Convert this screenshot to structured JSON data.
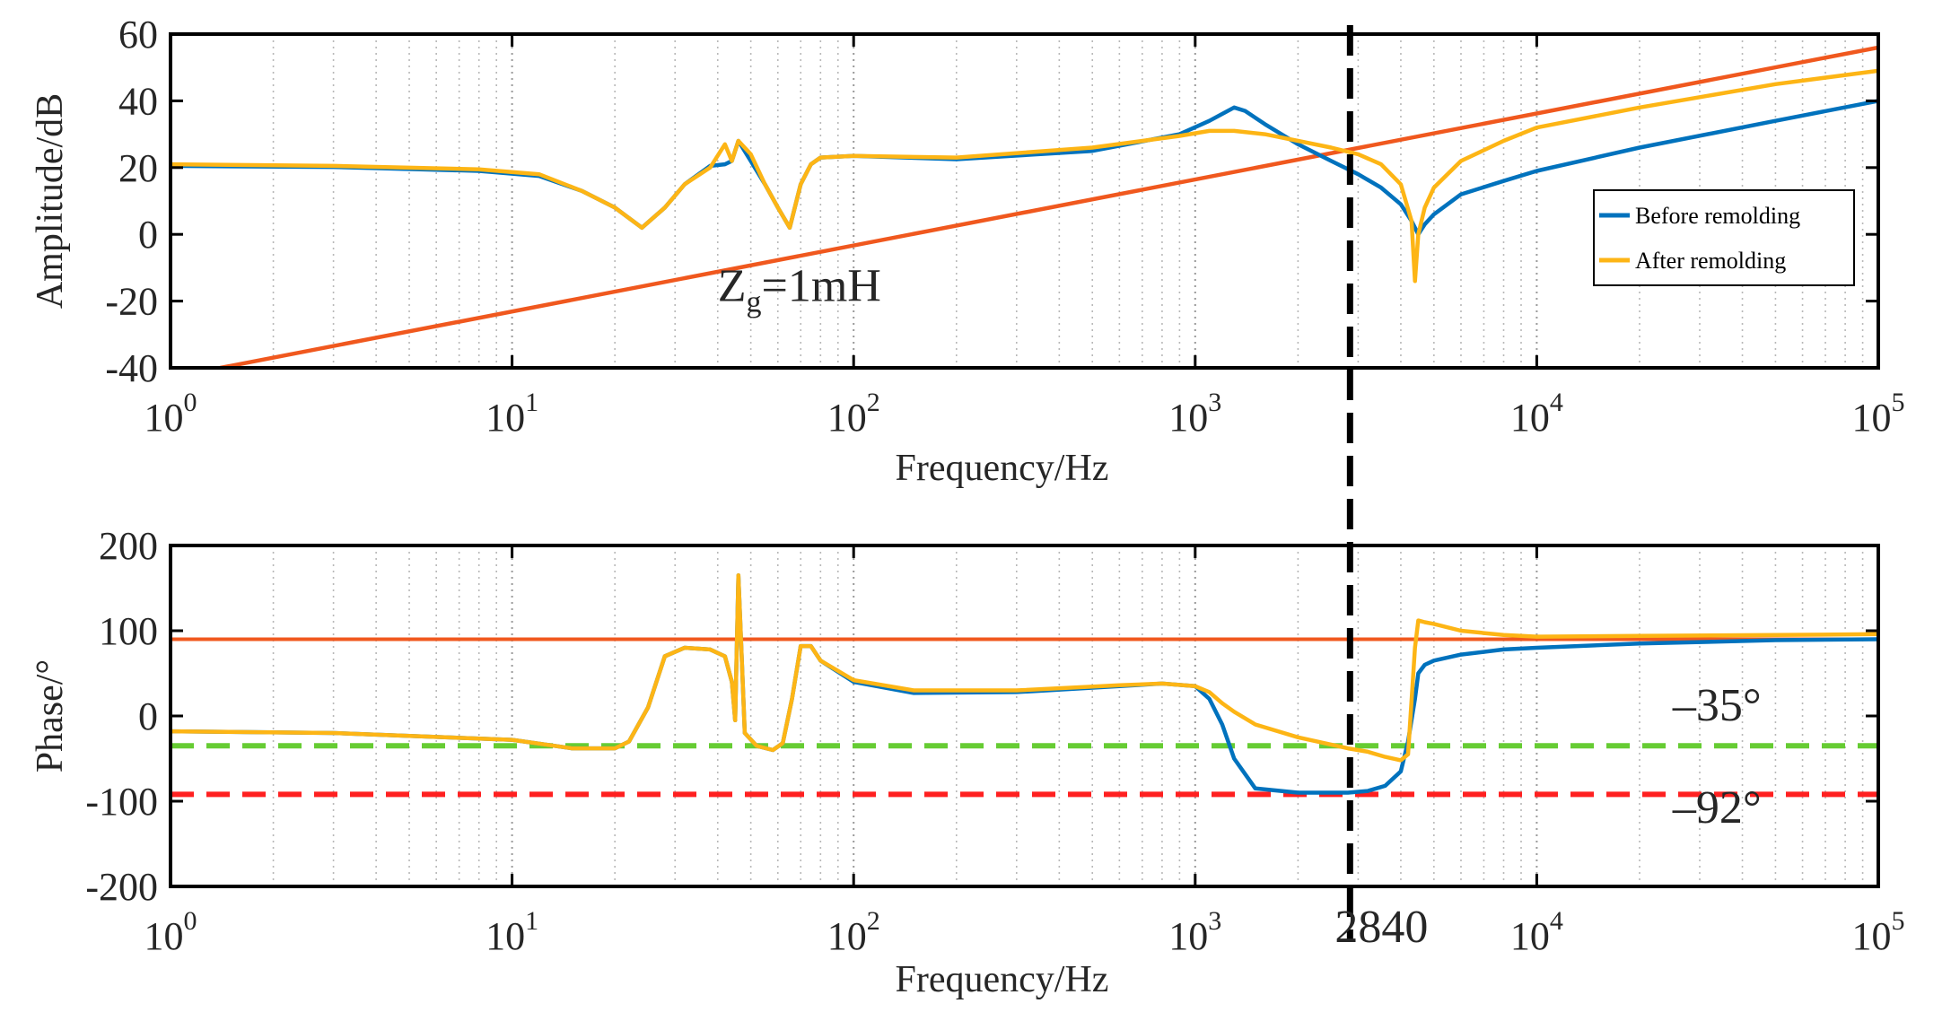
{
  "chart_data": [
    {
      "type": "line",
      "panel": "amplitude",
      "xscale": "log",
      "xlim": [
        1,
        100000
      ],
      "ylim": [
        -40,
        60
      ],
      "xlabel": "Frequency/Hz",
      "ylabel": "Amplitude/dB",
      "grid": "vertical-dotted",
      "xtick_labels": [
        {
          "base": "10",
          "exp": "0",
          "value": 1
        },
        {
          "base": "10",
          "exp": "1",
          "value": 10
        },
        {
          "base": "10",
          "exp": "2",
          "value": 100
        },
        {
          "base": "10",
          "exp": "3",
          "value": 1000
        },
        {
          "base": "10",
          "exp": "4",
          "value": 10000
        },
        {
          "base": "10",
          "exp": "5",
          "value": 100000
        }
      ],
      "yticks": [
        -40,
        -20,
        0,
        20,
        40,
        60
      ],
      "ytick_labels": [
        "-40",
        "-20",
        "0",
        "20",
        "40",
        "60"
      ],
      "legend": {
        "position": "right",
        "entries": [
          {
            "label": "Before remolding",
            "color": "#0072BD"
          },
          {
            "label": "After remolding",
            "color": "#FDB515"
          }
        ]
      },
      "annotations": [
        {
          "text_main": "Z",
          "text_sub": "g",
          "text_rest": "=1mH",
          "at": [
            40,
            -20
          ]
        }
      ],
      "series": [
        {
          "name": "Grid impedance Zg=1mH",
          "color": "#F0581E",
          "x": [
            1.4,
            100000
          ],
          "y": [
            -40,
            56
          ]
        },
        {
          "name": "Before remolding",
          "color": "#0072BD",
          "x": [
            1,
            3,
            8,
            12,
            16,
            20,
            24,
            28,
            32,
            38,
            42,
            44,
            46,
            50,
            55,
            60,
            65,
            70,
            75,
            80,
            100,
            200,
            500,
            900,
            1100,
            1300,
            1400,
            1600,
            2000,
            2500,
            3000,
            3500,
            4000,
            4300,
            4500,
            4700,
            5000,
            6000,
            8000,
            10000,
            20000,
            50000,
            100000
          ],
          "y": [
            20.5,
            20.2,
            19,
            17.5,
            13,
            8,
            2,
            8,
            15,
            20.5,
            21,
            22,
            28,
            22,
            15,
            8,
            2,
            15,
            21,
            23,
            23.5,
            22.5,
            25,
            30,
            34,
            38,
            37,
            33,
            27,
            22,
            18,
            14,
            9,
            4,
            0,
            3,
            6,
            12,
            16,
            19,
            26,
            34,
            40
          ]
        },
        {
          "name": "After remolding",
          "color": "#FDB515",
          "x": [
            1,
            3,
            8,
            12,
            16,
            20,
            24,
            28,
            32,
            38,
            42,
            44,
            46,
            50,
            55,
            60,
            65,
            70,
            75,
            80,
            100,
            200,
            500,
            900,
            1100,
            1300,
            1600,
            2000,
            2500,
            3000,
            3500,
            4000,
            4300,
            4400,
            4500,
            4700,
            5000,
            6000,
            8000,
            10000,
            20000,
            50000,
            100000
          ],
          "y": [
            21,
            20.5,
            19.5,
            18,
            13,
            8,
            2,
            8,
            15,
            20,
            27,
            22,
            28,
            24,
            15,
            8,
            2,
            15,
            21,
            23,
            23.5,
            23,
            26,
            29.5,
            31,
            31,
            30,
            28,
            26,
            24,
            21,
            15,
            4,
            -14,
            0,
            8,
            14,
            22,
            28,
            32,
            38,
            45,
            49
          ]
        }
      ]
    },
    {
      "type": "line",
      "panel": "phase",
      "xscale": "log",
      "xlim": [
        1,
        100000
      ],
      "ylim": [
        -200,
        200
      ],
      "xlabel": "Frequency/Hz",
      "ylabel": "Phase/°",
      "grid": "vertical-dotted",
      "xtick_labels": [
        {
          "base": "10",
          "exp": "0",
          "value": 1
        },
        {
          "base": "10",
          "exp": "1",
          "value": 10
        },
        {
          "base": "10",
          "exp": "2",
          "value": 100
        },
        {
          "base": "10",
          "exp": "3",
          "value": 1000
        },
        {
          "base": "10",
          "exp": "4",
          "value": 10000
        },
        {
          "base": "10",
          "exp": "5",
          "value": 100000
        }
      ],
      "yticks": [
        -200,
        -100,
        0,
        100,
        200
      ],
      "ytick_labels": [
        "-200",
        "-100",
        "0",
        "100",
        "200"
      ],
      "annotations": [
        {
          "text": "–35°",
          "at": [
            25000,
            -5
          ]
        },
        {
          "text": "–92°",
          "at": [
            25000,
            -125
          ]
        }
      ],
      "reference_lines": [
        {
          "name": "grid-phase-90",
          "y": 90,
          "color": "#F0581E",
          "style": "solid"
        },
        {
          "name": "minus-35-threshold",
          "y": -35,
          "color": "#66CC33",
          "style": "dashed"
        },
        {
          "name": "minus-92-threshold",
          "y": -92,
          "color": "#FF2020",
          "style": "dashed"
        }
      ],
      "series": [
        {
          "name": "Before remolding",
          "color": "#0072BD",
          "x": [
            1,
            3,
            10,
            15,
            20,
            22,
            25,
            28,
            32,
            38,
            42,
            44,
            45,
            46,
            48,
            52,
            58,
            62,
            66,
            70,
            75,
            80,
            100,
            150,
            300,
            600,
            800,
            1000,
            1100,
            1200,
            1300,
            1500,
            2000,
            2800,
            3200,
            3600,
            4000,
            4200,
            4400,
            4500,
            4700,
            5000,
            6000,
            8000,
            10000,
            20000,
            50000,
            100000
          ],
          "y": [
            -18,
            -20,
            -28,
            -38,
            -38,
            -30,
            10,
            70,
            80,
            78,
            70,
            40,
            -5,
            165,
            -20,
            -35,
            -40,
            -32,
            20,
            82,
            82,
            65,
            40,
            27,
            28,
            35,
            38,
            35,
            20,
            -10,
            -50,
            -85,
            -90,
            -90,
            -88,
            -82,
            -65,
            -30,
            20,
            50,
            60,
            65,
            72,
            78,
            80,
            85,
            89,
            90
          ]
        },
        {
          "name": "After remolding",
          "color": "#FDB515",
          "x": [
            1,
            3,
            10,
            15,
            20,
            22,
            25,
            28,
            32,
            38,
            42,
            44,
            45,
            46,
            48,
            52,
            58,
            62,
            66,
            70,
            75,
            80,
            100,
            150,
            300,
            600,
            800,
            1000,
            1100,
            1200,
            1300,
            1500,
            2000,
            2800,
            3200,
            3600,
            4000,
            4200,
            4400,
            4500,
            4700,
            5000,
            6000,
            8000,
            10000,
            20000,
            50000,
            100000
          ],
          "y": [
            -18,
            -20,
            -28,
            -38,
            -38,
            -30,
            10,
            70,
            80,
            78,
            70,
            40,
            -5,
            165,
            -20,
            -35,
            -40,
            -32,
            20,
            82,
            82,
            65,
            42,
            30,
            30,
            36,
            38,
            35,
            28,
            15,
            5,
            -10,
            -25,
            -38,
            -42,
            -48,
            -52,
            -45,
            80,
            112,
            110,
            108,
            100,
            95,
            93,
            94,
            95,
            96
          ]
        }
      ],
      "marker": {
        "name": "crossover-2840",
        "x": 2840,
        "label": "2840",
        "style": "dashed",
        "color": "#000000"
      }
    }
  ]
}
